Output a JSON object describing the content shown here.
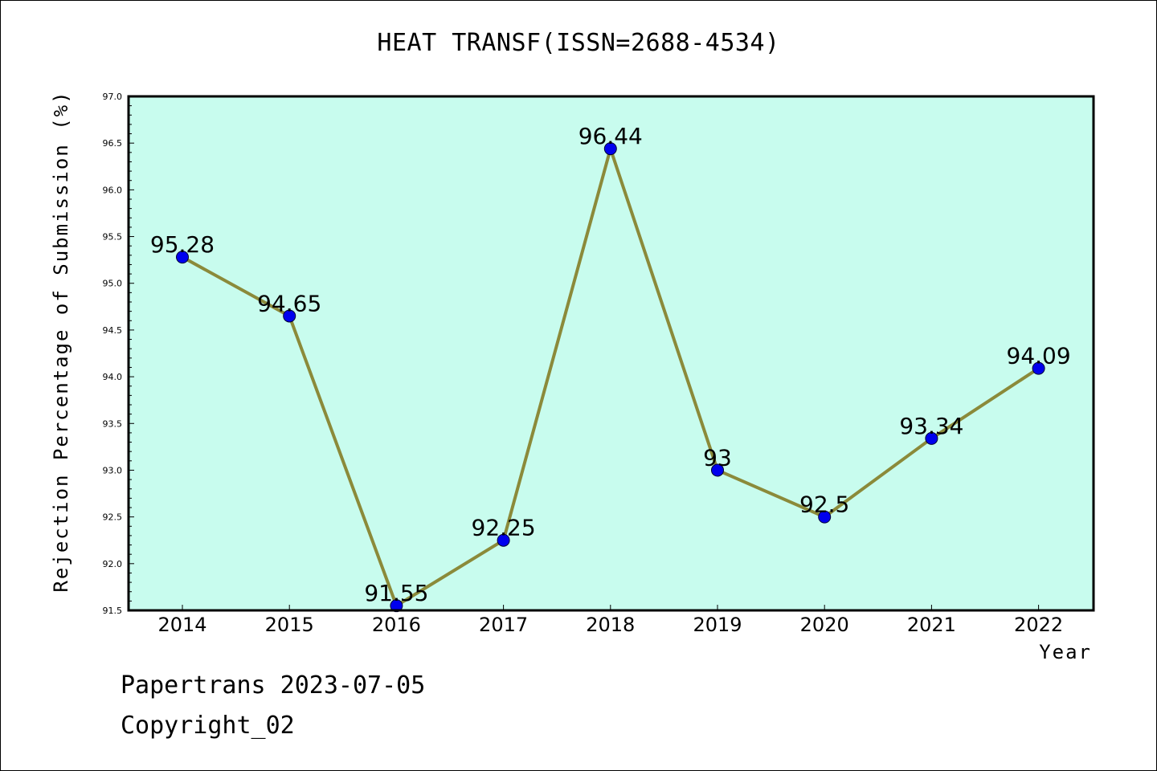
{
  "title": "HEAT TRANSF(ISSN=2688-4534)",
  "footer": {
    "line1": "Papertrans 2023-07-05",
    "line2": "Copyright_02"
  },
  "colors": {
    "plot_background": "#c8fcee",
    "line": "#8b8a3a",
    "marker": "#0000ee",
    "axis": "#000000"
  },
  "chart_data": {
    "type": "line",
    "title": "HEAT TRANSF(ISSN=2688-4534)",
    "xlabel": "Year",
    "ylabel": "Rejection Percentage of Submission (%)",
    "categories": [
      "2014",
      "2015",
      "2016",
      "2017",
      "2018",
      "2019",
      "2020",
      "2021",
      "2022"
    ],
    "series": [
      {
        "values": [
          95.28,
          94.65,
          91.55,
          92.25,
          96.44,
          93.0,
          92.5,
          93.34,
          94.09
        ],
        "labels": [
          "95.28",
          "94.65",
          "91.55",
          "92.25",
          "96.44",
          "93",
          "92.5",
          "93.34",
          "94.09"
        ]
      }
    ],
    "ylim": [
      91.5,
      97.0
    ],
    "yticks": [
      "91.5",
      "92.0",
      "92.5",
      "93.0",
      "93.5",
      "94.0",
      "94.5",
      "95.0",
      "95.5",
      "96.0",
      "96.5",
      "97.0"
    ],
    "grid": false,
    "legend": "none"
  }
}
